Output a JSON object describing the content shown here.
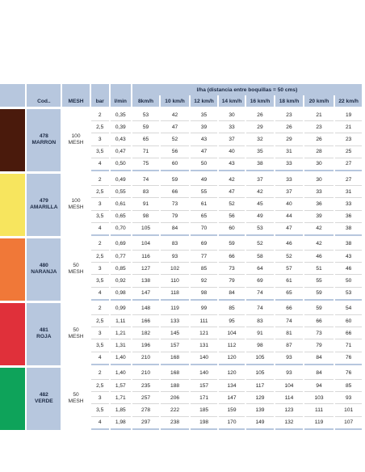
{
  "header": {
    "code": "Cod..",
    "mesh": "MESH",
    "bar": "bar",
    "lmin": "l/min",
    "group_title": "l/ha (distancia entre boquillas = 50 cms)",
    "speeds": [
      "8km/h",
      "10 km/h",
      "12 km/h",
      "14 km/h",
      "16 km/h",
      "18 km/h",
      "20 km/h",
      "22 km/h"
    ]
  },
  "groups": [
    {
      "code": "478",
      "name": "MARRON",
      "mesh_value": "100",
      "mesh_word": "MESH",
      "color": "#4a1a0c",
      "rows": [
        {
          "bar": "2",
          "lmin": "0,35",
          "vals": [
            "53",
            "42",
            "35",
            "30",
            "26",
            "23",
            "21",
            "19"
          ]
        },
        {
          "bar": "2,5",
          "lmin": "0,39",
          "vals": [
            "59",
            "47",
            "39",
            "33",
            "29",
            "26",
            "23",
            "21"
          ]
        },
        {
          "bar": "3",
          "lmin": "0,43",
          "vals": [
            "65",
            "52",
            "43",
            "37",
            "32",
            "29",
            "26",
            "23"
          ]
        },
        {
          "bar": "3,5",
          "lmin": "0,47",
          "vals": [
            "71",
            "56",
            "47",
            "40",
            "35",
            "31",
            "28",
            "25"
          ]
        },
        {
          "bar": "4",
          "lmin": "0,50",
          "vals": [
            "75",
            "60",
            "50",
            "43",
            "38",
            "33",
            "30",
            "27"
          ]
        }
      ]
    },
    {
      "code": "479",
      "name": "AMARILLA",
      "mesh_value": "100",
      "mesh_word": "MESH",
      "color": "#f7e55e",
      "rows": [
        {
          "bar": "2",
          "lmin": "0,49",
          "vals": [
            "74",
            "59",
            "49",
            "42",
            "37",
            "33",
            "30",
            "27"
          ]
        },
        {
          "bar": "2,5",
          "lmin": "0,55",
          "vals": [
            "83",
            "66",
            "55",
            "47",
            "42",
            "37",
            "33",
            "31"
          ]
        },
        {
          "bar": "3",
          "lmin": "0,61",
          "vals": [
            "91",
            "73",
            "61",
            "52",
            "45",
            "40",
            "36",
            "33"
          ]
        },
        {
          "bar": "3,5",
          "lmin": "0,65",
          "vals": [
            "98",
            "79",
            "65",
            "56",
            "49",
            "44",
            "39",
            "36"
          ]
        },
        {
          "bar": "4",
          "lmin": "0,70",
          "vals": [
            "105",
            "84",
            "70",
            "60",
            "53",
            "47",
            "42",
            "38"
          ]
        }
      ]
    },
    {
      "code": "480",
      "name": "NARANJA",
      "mesh_value": "50",
      "mesh_word": "MESH",
      "color": "#f07838",
      "rows": [
        {
          "bar": "2",
          "lmin": "0,69",
          "vals": [
            "104",
            "83",
            "69",
            "59",
            "52",
            "46",
            "42",
            "38"
          ]
        },
        {
          "bar": "2,5",
          "lmin": "0,77",
          "vals": [
            "116",
            "93",
            "77",
            "66",
            "58",
            "52",
            "46",
            "43"
          ]
        },
        {
          "bar": "3",
          "lmin": "0,85",
          "vals": [
            "127",
            "102",
            "85",
            "73",
            "64",
            "57",
            "51",
            "46"
          ]
        },
        {
          "bar": "3,5",
          "lmin": "0,92",
          "vals": [
            "138",
            "110",
            "92",
            "79",
            "69",
            "61",
            "55",
            "50"
          ]
        },
        {
          "bar": "4",
          "lmin": "0,98",
          "vals": [
            "147",
            "118",
            "98",
            "84",
            "74",
            "65",
            "59",
            "53"
          ]
        }
      ]
    },
    {
      "code": "481",
      "name": "ROJA",
      "mesh_value": "50",
      "mesh_word": "MESH",
      "color": "#e0303a",
      "rows": [
        {
          "bar": "2",
          "lmin": "0,99",
          "vals": [
            "148",
            "119",
            "99",
            "85",
            "74",
            "66",
            "59",
            "54"
          ]
        },
        {
          "bar": "2,5",
          "lmin": "1,11",
          "vals": [
            "166",
            "133",
            "111",
            "95",
            "83",
            "74",
            "66",
            "60"
          ]
        },
        {
          "bar": "3",
          "lmin": "1,21",
          "vals": [
            "182",
            "145",
            "121",
            "104",
            "91",
            "81",
            "73",
            "66"
          ]
        },
        {
          "bar": "3,5",
          "lmin": "1,31",
          "vals": [
            "196",
            "157",
            "131",
            "112",
            "98",
            "87",
            "79",
            "71"
          ]
        },
        {
          "bar": "4",
          "lmin": "1,40",
          "vals": [
            "210",
            "168",
            "140",
            "120",
            "105",
            "93",
            "84",
            "76"
          ]
        }
      ]
    },
    {
      "code": "482",
      "name": "VERDE",
      "mesh_value": "50",
      "mesh_word": "MESH",
      "color": "#0ea35a",
      "rows": [
        {
          "bar": "2",
          "lmin": "1,40",
          "vals": [
            "210",
            "168",
            "140",
            "120",
            "105",
            "93",
            "84",
            "76"
          ]
        },
        {
          "bar": "2,5",
          "lmin": "1,57",
          "vals": [
            "235",
            "188",
            "157",
            "134",
            "117",
            "104",
            "94",
            "85"
          ]
        },
        {
          "bar": "3",
          "lmin": "1,71",
          "vals": [
            "257",
            "206",
            "171",
            "147",
            "129",
            "114",
            "103",
            "93"
          ]
        },
        {
          "bar": "3,5",
          "lmin": "1,85",
          "vals": [
            "278",
            "222",
            "185",
            "159",
            "139",
            "123",
            "111",
            "101"
          ]
        },
        {
          "bar": "4",
          "lmin": "1,98",
          "vals": [
            "297",
            "238",
            "198",
            "170",
            "149",
            "132",
            "119",
            "107"
          ]
        }
      ]
    }
  ]
}
